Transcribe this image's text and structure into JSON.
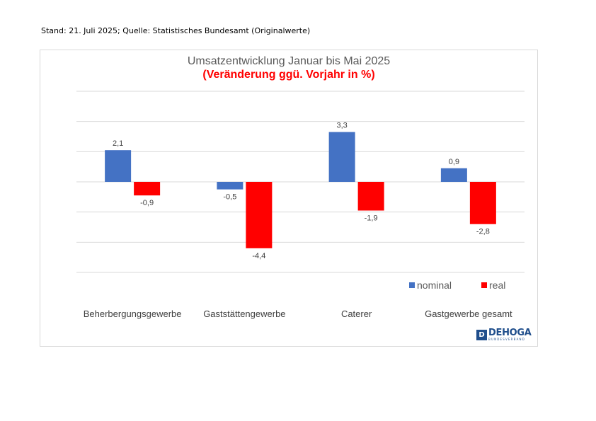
{
  "header": {
    "note": "Stand: 21. Juli 2025; Quelle: Statistisches Bundesamt (Originalwerte)"
  },
  "logo": {
    "name": "DEHOGA",
    "subtitle": "BUNDESVERBAND",
    "color": "#1f4e8c"
  },
  "chart_data": {
    "type": "bar",
    "title": "Umsatzentwicklung Januar bis Mai 2025",
    "subtitle": "(Veränderung ggü. Vorjahr in %)",
    "categories": [
      "Beherbergungsgewerbe",
      "Gaststättengewerbe",
      "Caterer",
      "Gastgewerbe gesamt"
    ],
    "series": [
      {
        "name": "nominal",
        "color": "#4472c4",
        "values": [
          2.1,
          -0.5,
          3.3,
          0.9
        ],
        "labels": [
          "2,1",
          "-0,5",
          "3,3",
          "0,9"
        ]
      },
      {
        "name": "real",
        "color": "#ff0000",
        "values": [
          -0.9,
          -4.4,
          -1.9,
          -2.8
        ],
        "labels": [
          "-0,9",
          "-4,4",
          "-1,9",
          "-2,8"
        ]
      }
    ],
    "ylim": [
      -6,
      6
    ],
    "grid": true,
    "legend": "bottom-right",
    "xlabel": "",
    "ylabel": ""
  }
}
